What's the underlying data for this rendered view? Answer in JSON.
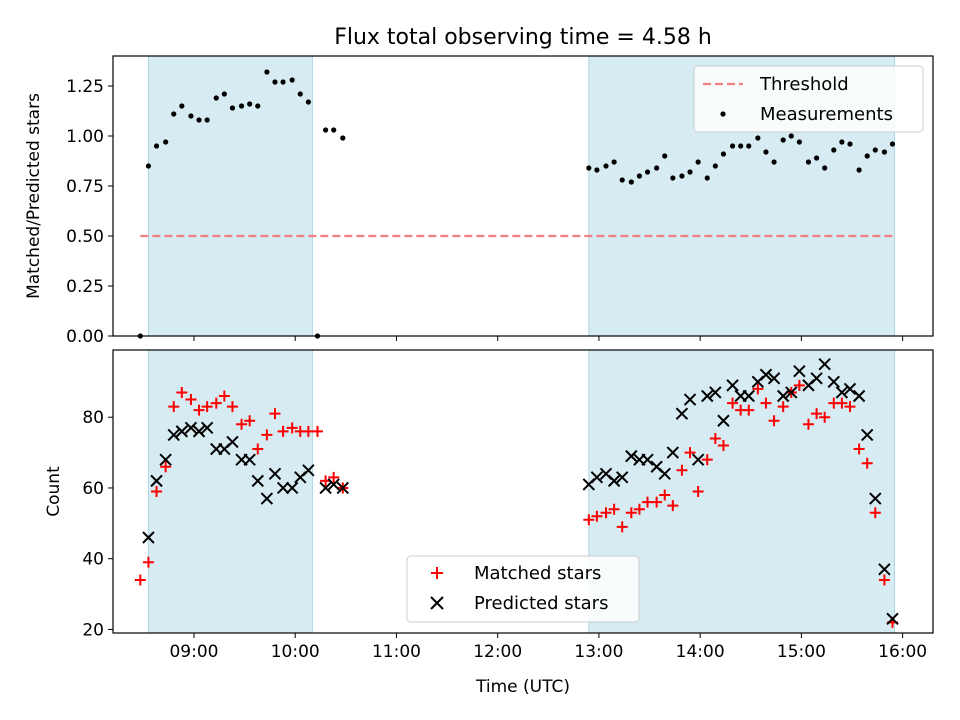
{
  "title": "Flux total observing time = 4.58 h",
  "colors": {
    "shade": "#add8e6",
    "threshold": "#f07f7f",
    "measurement": "#000000",
    "matched": "#ff0000",
    "predicted": "#000000"
  },
  "chart_data": [
    {
      "type": "scatter",
      "panel": "top",
      "ylabel": "Matched/Predicted stars",
      "xlim": [
        8.2,
        16.3
      ],
      "ylim": [
        0,
        1.4
      ],
      "yticks": [
        0.0,
        0.25,
        0.5,
        0.75,
        1.0,
        1.25
      ],
      "ytick_labels": [
        "0.00",
        "0.25",
        "0.50",
        "0.75",
        "1.00",
        "1.25"
      ],
      "shaded_intervals": [
        [
          8.55,
          10.17
        ],
        [
          12.9,
          15.92
        ]
      ],
      "threshold": {
        "label": "Threshold",
        "value": 0.5,
        "x_range": [
          8.47,
          15.92
        ]
      },
      "measurements": {
        "label": "Measurements",
        "x": [
          8.47,
          8.55,
          8.63,
          8.72,
          8.8,
          8.88,
          8.97,
          9.05,
          9.13,
          9.22,
          9.3,
          9.38,
          9.47,
          9.55,
          9.63,
          9.72,
          9.8,
          9.88,
          9.97,
          10.05,
          10.13,
          10.22,
          10.3,
          10.38,
          10.47,
          12.9,
          12.98,
          13.07,
          13.15,
          13.23,
          13.32,
          13.4,
          13.48,
          13.57,
          13.65,
          13.73,
          13.82,
          13.9,
          13.98,
          14.07,
          14.15,
          14.23,
          14.32,
          14.4,
          14.48,
          14.57,
          14.65,
          14.73,
          14.82,
          14.9,
          14.98,
          15.07,
          15.15,
          15.23,
          15.32,
          15.4,
          15.48,
          15.57,
          15.65,
          15.73,
          15.82,
          15.9
        ],
        "y": [
          0.0,
          0.85,
          0.95,
          0.97,
          1.11,
          1.15,
          1.1,
          1.08,
          1.08,
          1.19,
          1.21,
          1.14,
          1.15,
          1.16,
          1.15,
          1.32,
          1.27,
          1.27,
          1.28,
          1.21,
          1.17,
          0.0,
          1.03,
          1.03,
          0.99,
          0.84,
          0.83,
          0.85,
          0.87,
          0.78,
          0.77,
          0.8,
          0.82,
          0.84,
          0.9,
          0.79,
          0.8,
          0.82,
          0.87,
          0.79,
          0.85,
          0.91,
          0.95,
          0.95,
          0.95,
          0.99,
          0.92,
          0.87,
          0.98,
          1.0,
          0.97,
          0.87,
          0.89,
          0.84,
          0.93,
          0.97,
          0.96,
          0.83,
          0.9,
          0.93,
          0.92,
          0.96
        ]
      },
      "legend": {
        "placement": "upper right",
        "entries": [
          "Threshold",
          "Measurements"
        ]
      }
    },
    {
      "type": "scatter",
      "panel": "bottom",
      "ylabel": "Count",
      "xlabel": "Time (UTC)",
      "xlim": [
        8.2,
        16.3
      ],
      "ylim": [
        19,
        99
      ],
      "yticks": [
        20,
        40,
        60,
        80
      ],
      "ytick_labels": [
        "20",
        "40",
        "60",
        "80"
      ],
      "xticks": [
        9,
        10,
        11,
        12,
        13,
        14,
        15,
        16
      ],
      "xtick_labels": [
        "09:00",
        "10:00",
        "11:00",
        "12:00",
        "13:00",
        "14:00",
        "15:00",
        "16:00"
      ],
      "shaded_intervals": [
        [
          8.55,
          10.17
        ],
        [
          12.9,
          15.92
        ]
      ],
      "series": [
        {
          "name": "Matched stars",
          "marker": "plus",
          "x": [
            8.47,
            8.55,
            8.63,
            8.72,
            8.8,
            8.88,
            8.97,
            9.05,
            9.13,
            9.22,
            9.3,
            9.38,
            9.47,
            9.55,
            9.63,
            9.72,
            9.8,
            9.88,
            9.97,
            10.05,
            10.13,
            10.22,
            10.3,
            10.38,
            10.47,
            12.9,
            12.98,
            13.07,
            13.15,
            13.23,
            13.32,
            13.4,
            13.48,
            13.57,
            13.65,
            13.73,
            13.82,
            13.9,
            13.98,
            14.07,
            14.15,
            14.23,
            14.32,
            14.4,
            14.48,
            14.57,
            14.65,
            14.73,
            14.82,
            14.9,
            14.98,
            15.07,
            15.15,
            15.23,
            15.32,
            15.4,
            15.48,
            15.57,
            15.65,
            15.73,
            15.82,
            15.9
          ],
          "y": [
            34,
            39,
            59,
            66,
            83,
            87,
            85,
            82,
            83,
            84,
            86,
            83,
            78,
            79,
            71,
            75,
            81,
            76,
            77,
            76,
            76,
            76,
            62,
            63,
            60,
            51,
            52,
            53,
            54,
            49,
            53,
            54,
            56,
            56,
            58,
            55,
            65,
            70,
            59,
            68,
            74,
            72,
            84,
            82,
            82,
            88,
            84,
            79,
            83,
            87,
            89,
            78,
            81,
            80,
            84,
            84,
            83,
            71,
            67,
            53,
            34,
            22
          ]
        },
        {
          "name": "Predicted stars",
          "marker": "x",
          "x": [
            8.55,
            8.63,
            8.72,
            8.8,
            8.88,
            8.97,
            9.05,
            9.13,
            9.22,
            9.3,
            9.38,
            9.47,
            9.55,
            9.63,
            9.72,
            9.8,
            9.88,
            9.97,
            10.05,
            10.13,
            10.3,
            10.38,
            10.47,
            12.9,
            12.98,
            13.07,
            13.15,
            13.23,
            13.32,
            13.4,
            13.48,
            13.57,
            13.65,
            13.73,
            13.82,
            13.9,
            13.98,
            14.07,
            14.15,
            14.23,
            14.32,
            14.4,
            14.48,
            14.57,
            14.65,
            14.73,
            14.82,
            14.9,
            14.98,
            15.07,
            15.15,
            15.23,
            15.32,
            15.4,
            15.48,
            15.57,
            15.65,
            15.73,
            15.82,
            15.9
          ],
          "y": [
            46,
            62,
            68,
            75,
            76,
            77,
            76,
            77,
            71,
            71,
            73,
            68,
            68,
            62,
            57,
            64,
            60,
            60,
            63,
            65,
            60,
            61,
            60,
            61,
            63,
            64,
            62,
            63,
            69,
            68,
            68,
            66,
            64,
            70,
            81,
            85,
            68,
            86,
            87,
            79,
            89,
            86,
            86,
            90,
            92,
            91,
            86,
            87,
            93,
            89,
            91,
            95,
            90,
            87,
            88,
            86,
            75,
            57,
            37,
            23
          ]
        }
      ],
      "legend": {
        "placement": "lower center",
        "entries": [
          "Matched stars",
          "Predicted stars"
        ]
      }
    }
  ]
}
